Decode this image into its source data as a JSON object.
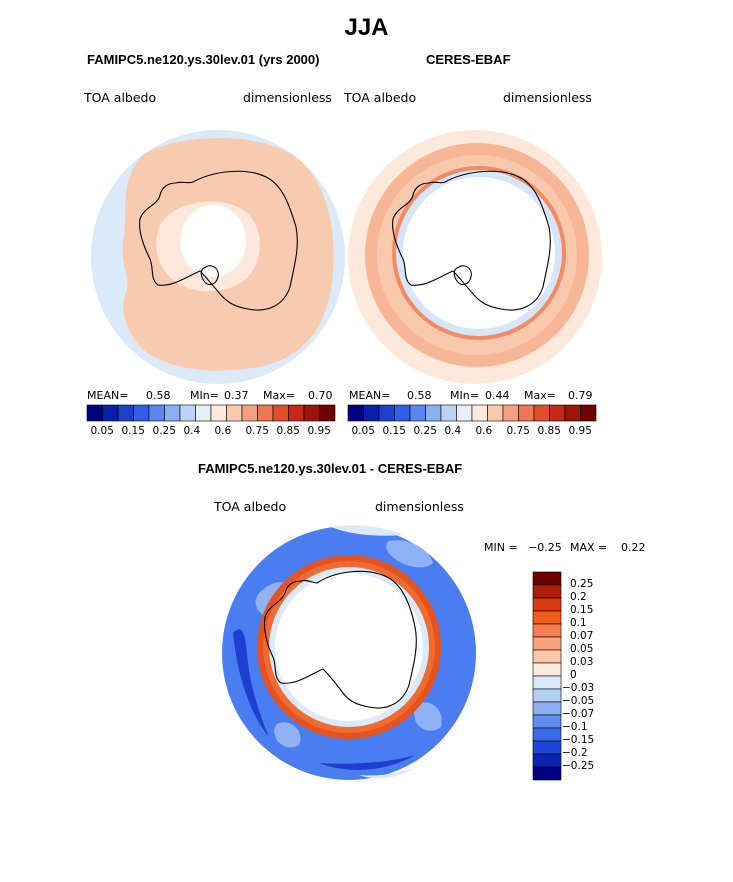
{
  "figure": {
    "title": "JJA",
    "panel_left": {
      "title": "FAMIPC5.ne120.ys.30lev.01 (yrs 2000)",
      "var_label": "TOA albedo",
      "units": "dimensionless",
      "stats": {
        "mean_label": "MEAN=",
        "mean": "0.58",
        "min_label": "MIn=",
        "min": "0.37",
        "max_label": "Max=",
        "max": "0.70"
      }
    },
    "panel_right": {
      "title": "CERES-EBAF",
      "var_label": "TOA albedo",
      "units": "dimensionless",
      "stats": {
        "mean_label": "MEAN=",
        "mean": "0.58",
        "min_label": "MIn=",
        "min": "0.44",
        "max_label": "Max=",
        "max": "0.79"
      }
    },
    "panel_diff": {
      "title": "FAMIPC5.ne120.ys.30lev.01 - CERES-EBAF",
      "var_label": "TOA albedo",
      "units": "dimensionless",
      "stats": {
        "min_label": "MIN =",
        "min": "−0.25",
        "max_label": "MAX =",
        "max": "0.22"
      }
    }
  },
  "colorbar_abs": {
    "colors": [
      "#00007f",
      "#0a1fa8",
      "#1a40cc",
      "#2e5fe6",
      "#5a86f0",
      "#8aaff4",
      "#bcd3f7",
      "#e4effa",
      "#fde8db",
      "#f9c8ad",
      "#f4a07e",
      "#ee7650",
      "#e04e2a",
      "#c22a13",
      "#9a1407",
      "#6e0000"
    ],
    "ticks": [
      "0.05",
      "0.15",
      "0.25",
      "0.4",
      "0.6",
      "0.75",
      "0.85",
      "0.95"
    ]
  },
  "colorbar_diff": {
    "colors": [
      "#6e0000",
      "#b01e0a",
      "#d83a12",
      "#f25a1a",
      "#f77e4e",
      "#f9a27c",
      "#fbc7a7",
      "#fde9da",
      "#dbe9f7",
      "#b6cdf4",
      "#8db0f2",
      "#608ef0",
      "#3a6ce8",
      "#1c46d6",
      "#0c24b6",
      "#000080"
    ],
    "labels": [
      "0.25",
      "0.2",
      "0.15",
      "0.1",
      "0.07",
      "0.05",
      "0.03",
      "0",
      "−0.03",
      "−0.05",
      "−0.07",
      "−0.1",
      "−0.15",
      "−0.2",
      "−0.25"
    ]
  }
}
